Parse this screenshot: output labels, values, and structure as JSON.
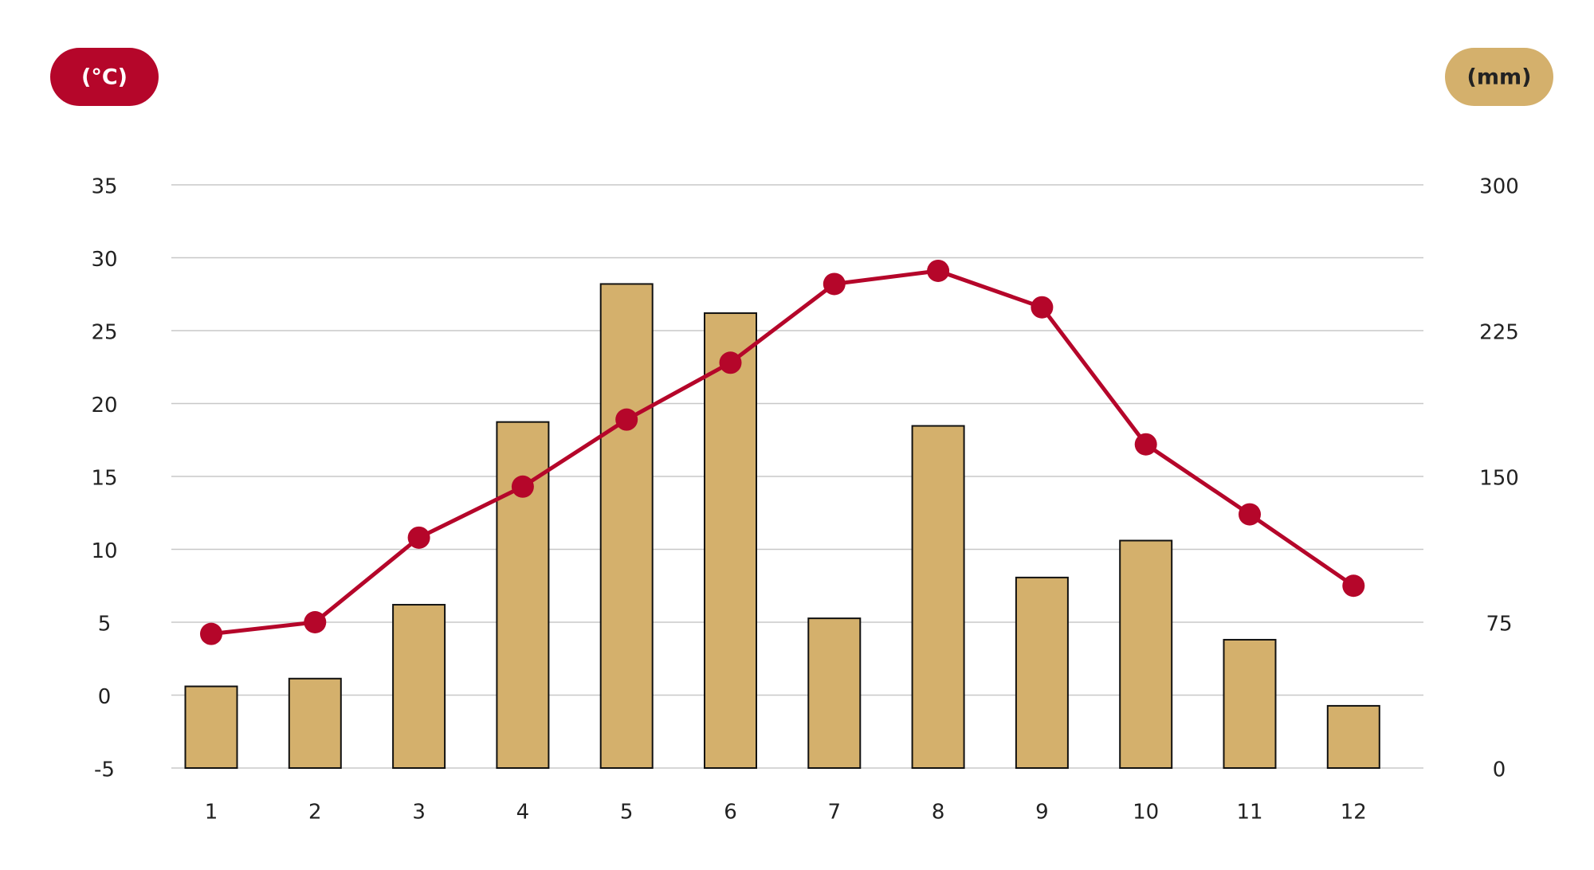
{
  "chart_data": {
    "type": "combo",
    "y_label": "(°C)",
    "y2_label": "(mm)",
    "categories": [
      "1",
      "2",
      "3",
      "4",
      "5",
      "6",
      "7",
      "8",
      "9",
      "10",
      "11",
      "12"
    ],
    "ylim": [
      -5,
      35
    ],
    "yticks": [
      -5,
      0,
      5,
      10,
      15,
      20,
      25,
      30,
      35
    ],
    "y2lim": [
      0,
      300
    ],
    "y2ticks": [
      0,
      75,
      150,
      225,
      300
    ],
    "grid": true,
    "series": [
      {
        "type": "bar",
        "axis": "y2",
        "color": "#d4b06c",
        "values": [
          42,
          46,
          84,
          178,
          249,
          234,
          77,
          176,
          98,
          117,
          66,
          32
        ]
      },
      {
        "type": "line",
        "color": "#b5062a",
        "values": [
          4.2,
          5.0,
          10.8,
          14.3,
          18.9,
          22.8,
          28.2,
          29.1,
          26.6,
          17.2,
          12.4,
          7.5
        ]
      }
    ]
  }
}
